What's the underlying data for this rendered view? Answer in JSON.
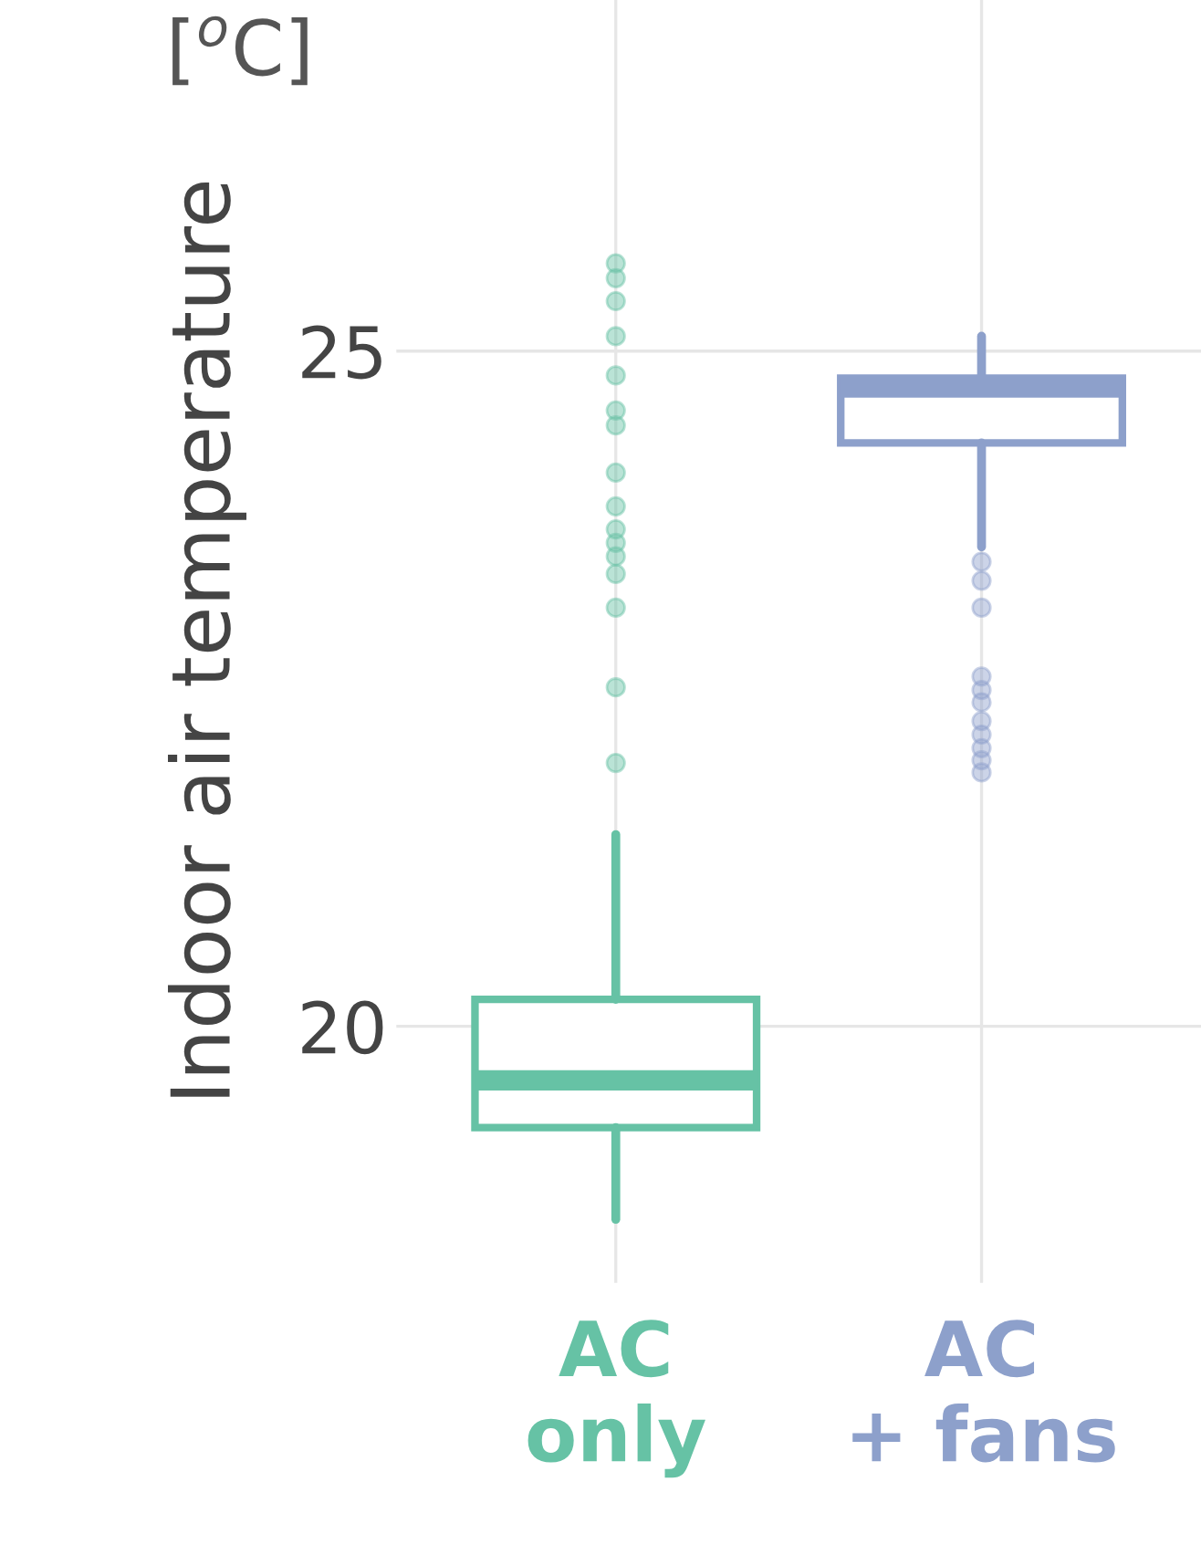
{
  "chart_data": {
    "type": "box",
    "ylabel": "Indoor air temperature",
    "annotations": [
      "[$^{o}$C]"
    ],
    "categories": [
      "AC\nonly",
      "AC\n+ fans"
    ],
    "colors": [
      "#66c2a5",
      "#8da0cb"
    ],
    "boxes": [
      {
        "low": 18.57,
        "q1": 19.25,
        "median": 19.6,
        "q3": 20.2,
        "high": 21.42,
        "outliers": [
          25.65,
          25.54,
          25.37,
          25.11,
          24.82,
          24.56,
          24.45,
          24.1,
          23.85,
          23.68,
          23.58,
          23.48,
          23.35,
          23.1,
          22.51,
          21.95
        ]
      },
      {
        "low": 23.55,
        "q1": 24.32,
        "median": 24.73,
        "q3": 24.8,
        "high": 25.11,
        "outliers": [
          23.44,
          23.3,
          23.1,
          22.59,
          22.49,
          22.4,
          22.26,
          22.16,
          22.06,
          21.97,
          21.88
        ]
      }
    ],
    "ylim": [
      18.1,
      27.6
    ],
    "yticks": [
      20,
      25
    ],
    "grid": true
  }
}
